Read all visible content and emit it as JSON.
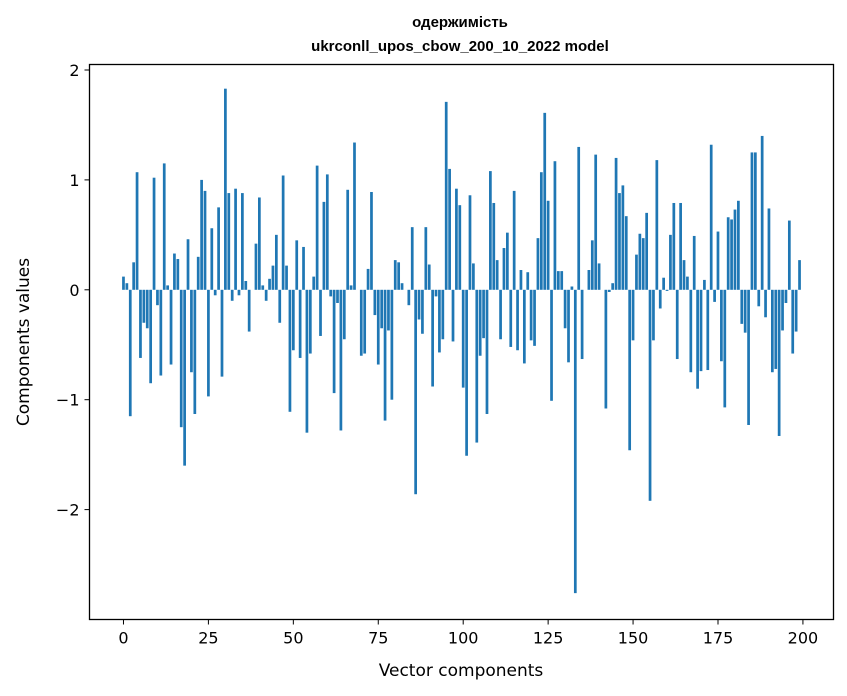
{
  "chart_data": {
    "type": "bar",
    "title_line1": "одержимість",
    "title_line2": "ukrconll_upos_cbow_200_10_2022 model",
    "xlabel": "Vector components",
    "ylabel": "Components values",
    "xlim": [
      -10,
      209
    ],
    "ylim": [
      -3.0,
      2.05
    ],
    "xticks": [
      0,
      25,
      50,
      75,
      100,
      125,
      150,
      175,
      200
    ],
    "xtick_labels": [
      "0",
      "25",
      "50",
      "75",
      "100",
      "125",
      "150",
      "175",
      "200"
    ],
    "yticks": [
      2,
      1,
      0,
      -1,
      -2
    ],
    "ytick_labels": [
      "2",
      "1",
      "0",
      "−1",
      "−2"
    ],
    "bar_color": "#1f77b4",
    "x": [
      0,
      1,
      2,
      3,
      4,
      5,
      6,
      7,
      8,
      9,
      10,
      11,
      12,
      13,
      14,
      15,
      16,
      17,
      18,
      19,
      20,
      21,
      22,
      23,
      24,
      25,
      26,
      27,
      28,
      29,
      30,
      31,
      32,
      33,
      34,
      35,
      36,
      37,
      38,
      39,
      40,
      41,
      42,
      43,
      44,
      45,
      46,
      47,
      48,
      49,
      50,
      51,
      52,
      53,
      54,
      55,
      56,
      57,
      58,
      59,
      60,
      61,
      62,
      63,
      64,
      65,
      66,
      67,
      68,
      69,
      70,
      71,
      72,
      73,
      74,
      75,
      76,
      77,
      78,
      79,
      80,
      81,
      82,
      83,
      84,
      85,
      86,
      87,
      88,
      89,
      90,
      91,
      92,
      93,
      94,
      95,
      96,
      97,
      98,
      99,
      100,
      101,
      102,
      103,
      104,
      105,
      106,
      107,
      108,
      109,
      110,
      111,
      112,
      113,
      114,
      115,
      116,
      117,
      118,
      119,
      120,
      121,
      122,
      123,
      124,
      125,
      126,
      127,
      128,
      129,
      130,
      131,
      132,
      133,
      134,
      135,
      136,
      137,
      138,
      139,
      140,
      141,
      142,
      143,
      144,
      145,
      146,
      147,
      148,
      149,
      150,
      151,
      152,
      153,
      154,
      155,
      156,
      157,
      158,
      159,
      160,
      161,
      162,
      163,
      164,
      165,
      166,
      167,
      168,
      169,
      170,
      171,
      172,
      173,
      174,
      175,
      176,
      177,
      178,
      179,
      180,
      181,
      182,
      183,
      184,
      185,
      186,
      187,
      188,
      189,
      190,
      191,
      192,
      193,
      194,
      195,
      196,
      197,
      198,
      199
    ],
    "values": [
      0.12,
      0.06,
      -1.15,
      0.25,
      1.07,
      -0.62,
      -0.3,
      -0.35,
      -0.85,
      1.02,
      -0.14,
      -0.78,
      1.15,
      0.04,
      -0.68,
      0.33,
      0.28,
      -1.25,
      -1.6,
      0.46,
      -0.75,
      -1.13,
      0.3,
      1.0,
      0.9,
      -0.97,
      0.56,
      -0.05,
      0.75,
      -0.79,
      1.83,
      0.88,
      -0.1,
      0.92,
      -0.05,
      0.88,
      0.08,
      -0.38,
      0.0,
      0.42,
      0.84,
      0.04,
      -0.1,
      0.1,
      0.22,
      0.5,
      -0.3,
      1.04,
      0.22,
      -1.11,
      -0.55,
      0.45,
      -0.62,
      0.39,
      -1.3,
      -0.58,
      0.12,
      1.13,
      -0.42,
      0.8,
      1.05,
      -0.06,
      -0.94,
      -0.12,
      -1.28,
      -0.45,
      0.91,
      0.04,
      1.34,
      0.0,
      -0.6,
      -0.58,
      0.19,
      0.89,
      -0.23,
      -0.68,
      -0.35,
      -1.19,
      -0.37,
      -1.0,
      0.27,
      0.25,
      0.06,
      0.0,
      -0.14,
      0.57,
      -1.86,
      -0.27,
      -0.4,
      0.57,
      0.23,
      -0.88,
      -0.06,
      -0.57,
      -0.45,
      1.71,
      1.1,
      -0.47,
      0.92,
      0.77,
      -0.89,
      -1.51,
      0.86,
      0.24,
      -1.39,
      -0.6,
      -0.44,
      -1.13,
      1.08,
      0.79,
      0.27,
      -0.45,
      0.38,
      0.52,
      -0.52,
      0.9,
      -0.55,
      0.18,
      -0.67,
      0.16,
      -0.46,
      -0.51,
      0.47,
      1.07,
      1.61,
      0.81,
      -1.01,
      1.17,
      0.17,
      0.17,
      -0.35,
      -0.66,
      0.03,
      -2.76,
      1.3,
      -0.63,
      0.0,
      0.18,
      0.45,
      1.23,
      0.24,
      0.0,
      -1.08,
      -0.02,
      0.06,
      1.2,
      0.88,
      0.95,
      0.67,
      -1.46,
      -0.46,
      0.32,
      0.51,
      0.47,
      0.7,
      -1.92,
      -0.46,
      1.18,
      -0.17,
      0.11,
      -0.01,
      0.5,
      0.79,
      -0.63,
      0.79,
      0.27,
      0.12,
      -0.75,
      0.49,
      -0.9,
      -0.74,
      0.09,
      -0.73,
      1.32,
      -0.11,
      0.53,
      -0.65,
      -1.07,
      0.66,
      0.64,
      0.73,
      0.81,
      -0.31,
      -0.39,
      -1.23,
      1.25,
      1.25,
      -0.15,
      1.4,
      -0.25,
      0.74,
      -0.75,
      -0.72,
      -1.33,
      -0.37,
      -0.12,
      0.63,
      -0.58,
      -0.38,
      0.27
    ]
  }
}
